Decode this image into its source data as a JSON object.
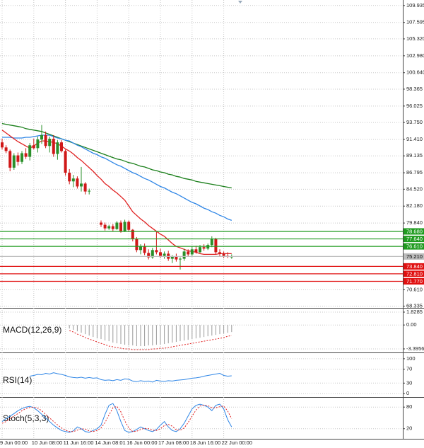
{
  "chart_data": [
    {
      "type": "candlestick",
      "categories": [
        "9 Jun 00:00",
        null,
        null,
        null,
        null,
        null,
        null,
        null,
        "10 Jun 08:00",
        null,
        null,
        null,
        null,
        null,
        null,
        null,
        "11 Jun 16:00",
        null,
        null,
        null,
        null,
        null,
        null,
        null,
        "14 Jun 08:01",
        null,
        null,
        null,
        null,
        null,
        null,
        null,
        "16 Jun 00:00",
        null,
        null,
        null,
        null,
        null,
        null,
        null,
        "17 Jun 08:00",
        null,
        null,
        null,
        null,
        null,
        null,
        null,
        "18 Jun 16:00",
        null,
        null,
        null,
        null,
        null,
        null,
        null,
        "22 Jun 00:00",
        null,
        null
      ],
      "open": [
        91.0,
        90.3,
        89.8,
        87.5,
        89.2,
        88.3,
        89.5,
        89.0,
        90.6,
        90.2,
        91.4,
        92.0,
        90.5,
        91.5,
        89.4,
        91.0,
        89.8,
        86.8,
        85.6,
        86.0,
        84.9,
        85.3,
        84.2,
        null,
        null,
        79.9,
        79.6,
        79.1,
        79.4,
        79.0,
        79.9,
        78.7,
        80.0,
        78.9,
        77.6,
        76.1,
        76.6,
        75.7,
        75.1,
        76.1,
        75.8,
        75.3,
        75.6,
        74.9,
        75.2,
        74.8,
        74.9,
        75.9,
        75.5,
        76.2,
        75.8,
        76.5,
        76.3,
        76.8,
        77.6,
        75.8,
        75.6,
        75.3,
        75.2
      ],
      "high": [
        91.5,
        90.6,
        90.0,
        89.5,
        89.6,
        89.8,
        90.2,
        90.9,
        91.5,
        91.8,
        93.4,
        92.5,
        91.8,
        92.0,
        91.3,
        91.3,
        90.0,
        87.3,
        86.5,
        86.3,
        87.6,
        85.5,
        84.6,
        null,
        null,
        80.2,
        79.9,
        79.6,
        79.7,
        80.1,
        80.2,
        80.3,
        80.2,
        79.0,
        77.9,
        76.9,
        77.0,
        76.2,
        76.4,
        78.6,
        76.3,
        75.9,
        76.0,
        75.4,
        75.6,
        75.1,
        76.3,
        76.2,
        76.6,
        76.7,
        76.8,
        76.9,
        77.0,
        78.0,
        77.8,
        76.2,
        75.9,
        75.8,
        75.5
      ],
      "low": [
        90.0,
        89.5,
        87.0,
        87.2,
        87.8,
        88.0,
        88.7,
        88.5,
        90.0,
        89.6,
        90.8,
        90.2,
        89.6,
        89.0,
        88.6,
        89.6,
        86.4,
        85.2,
        84.8,
        84.6,
        84.2,
        83.8,
        83.8,
        null,
        null,
        79.3,
        78.8,
        78.9,
        78.7,
        78.9,
        78.5,
        78.6,
        78.6,
        77.3,
        75.8,
        75.5,
        75.4,
        74.8,
        74.9,
        75.5,
        75.0,
        74.9,
        74.6,
        74.3,
        74.5,
        73.4,
        74.6,
        75.2,
        75.3,
        75.6,
        75.7,
        76.0,
        76.1,
        76.5,
        75.5,
        75.2,
        75.0,
        75.0,
        74.9
      ],
      "close": [
        90.3,
        89.8,
        87.5,
        89.2,
        88.3,
        89.5,
        89.0,
        90.6,
        90.2,
        91.4,
        92.0,
        90.5,
        91.5,
        89.4,
        91.0,
        89.8,
        86.8,
        85.6,
        86.0,
        84.9,
        85.3,
        84.2,
        84.3,
        null,
        null,
        79.6,
        79.1,
        79.4,
        79.0,
        79.9,
        78.7,
        80.0,
        78.9,
        77.6,
        76.1,
        76.6,
        75.7,
        75.1,
        76.1,
        75.8,
        75.3,
        75.6,
        74.9,
        75.2,
        74.8,
        74.9,
        75.9,
        75.5,
        76.2,
        75.8,
        76.5,
        76.3,
        76.8,
        77.6,
        75.8,
        75.6,
        75.3,
        75.2,
        75.2
      ],
      "up_color": "#2a8f2a",
      "down_color": "#d01818",
      "series": [
        {
          "color": "#1a7f1a",
          "values": [
            93.6,
            93.5,
            93.4,
            93.3,
            93.2,
            93.1,
            92.9,
            92.8,
            92.7,
            92.6,
            92.5,
            92.3,
            92.1,
            91.9,
            91.7,
            91.5,
            91.3,
            91.1,
            90.9,
            90.7,
            90.5,
            90.3,
            90.1,
            89.9,
            89.7,
            89.5,
            89.3,
            89.1,
            88.9,
            88.7,
            88.6,
            88.4,
            88.2,
            88.1,
            87.9,
            87.7,
            87.6,
            87.4,
            87.2,
            87.1,
            86.9,
            86.8,
            86.6,
            86.5,
            86.3,
            86.2,
            86.0,
            85.9,
            85.8,
            85.6,
            85.5,
            85.4,
            85.3,
            85.2,
            85.1,
            85.0,
            84.9,
            84.8,
            84.7
          ]
        },
        {
          "color": "#2f86e6",
          "values": [
            91.7,
            91.7,
            91.7,
            91.6,
            91.6,
            91.6,
            91.7,
            91.7,
            91.8,
            91.9,
            92.0,
            92.0,
            92.0,
            91.8,
            91.6,
            91.5,
            91.3,
            91.2,
            90.9,
            90.6,
            90.4,
            90.1,
            89.8,
            89.5,
            89.3,
            89.0,
            88.8,
            88.5,
            88.2,
            87.9,
            87.7,
            87.4,
            87.1,
            86.8,
            86.6,
            86.3,
            86.0,
            85.8,
            85.5,
            85.2,
            84.9,
            84.7,
            84.4,
            84.1,
            83.9,
            83.6,
            83.3,
            83.0,
            82.7,
            82.5,
            82.2,
            81.9,
            81.7,
            81.4,
            81.2,
            80.9,
            80.7,
            80.4,
            80.2
          ]
        },
        {
          "color": "#e02020",
          "values": [
            92.7,
            92.3,
            91.9,
            91.5,
            91.1,
            90.8,
            90.5,
            90.2,
            90.5,
            90.9,
            91.2,
            91.2,
            91.1,
            91.0,
            90.8,
            90.5,
            90.1,
            89.8,
            89.4,
            88.9,
            88.5,
            88.0,
            87.5,
            87.0,
            86.4,
            85.9,
            85.3,
            84.9,
            84.4,
            84.0,
            83.5,
            83.0,
            82.2,
            81.4,
            80.9,
            80.4,
            80.0,
            79.5,
            79.1,
            78.7,
            78.3,
            78.0,
            77.5,
            77.0,
            76.6,
            76.4,
            76.2,
            76.0,
            75.9,
            75.8,
            75.6,
            75.5,
            75.5,
            75.5,
            75.5,
            75.6,
            75.6,
            75.6,
            75.6
          ]
        }
      ],
      "levels": [
        {
          "value": 78.68,
          "label": "78.680",
          "color": "#1f9b1f",
          "text_color": "#ffffff"
        },
        {
          "value": 77.64,
          "label": "77.640",
          "color": "#1f9b1f",
          "text_color": "#ffffff"
        },
        {
          "value": 76.61,
          "label": "76.610",
          "color": "#1f9b1f",
          "text_color": "#ffffff"
        },
        {
          "value": 75.21,
          "label": "75.210",
          "color": "#bdbdbd",
          "text_color": "#000000"
        },
        {
          "value": 73.84,
          "label": "73.840",
          "color": "#e01010",
          "text_color": "#ffffff"
        },
        {
          "value": 72.81,
          "label": "72.810",
          "color": "#e01010",
          "text_color": "#ffffff"
        },
        {
          "value": 71.77,
          "label": "71.770",
          "color": "#e01010",
          "text_color": "#ffffff"
        }
      ],
      "ylim": [
        68.1,
        110.7
      ],
      "yticks": [
        109.935,
        107.595,
        {
          "value": 105.32,
          "label": "105.320"
        },
        {
          "value": 102.98,
          "label": "102.980"
        },
        {
          "value": 100.64,
          "label": "100.640"
        },
        98.365,
        96.025,
        {
          "value": 93.75,
          "label": "93.750"
        },
        {
          "value": 91.41,
          "label": "91.410"
        },
        89.135,
        86.795,
        {
          "value": 84.52,
          "label": "84.520"
        },
        {
          "value": 82.18,
          "label": "82.180"
        },
        {
          "value": 79.84,
          "label": "79.840"
        },
        {
          "value": 70.61,
          "label": "70.610"
        },
        68.335
      ],
      "grid": true
    },
    {
      "type": "indicator",
      "title": "MACD(12,26,9)",
      "series": [
        {
          "type": "bar",
          "color": "#9a9a9a",
          "values": [
            null,
            null,
            null,
            null,
            null,
            null,
            null,
            null,
            null,
            null,
            null,
            null,
            null,
            null,
            null,
            null,
            null,
            -0.5,
            -0.7,
            -0.9,
            -1.1,
            -1.3,
            -1.5,
            -1.7,
            -1.9,
            -2.0,
            -2.2,
            -2.3,
            -2.5,
            -2.6,
            -2.7,
            -2.8,
            -2.9,
            -2.9,
            -3.0,
            -3.0,
            -3.0,
            -2.9,
            -2.9,
            -2.8,
            -2.8,
            -2.7,
            -2.6,
            -2.5,
            -2.4,
            -2.3,
            -2.2,
            -2.1,
            -2.0,
            -1.9,
            -1.8,
            -1.7,
            -1.6,
            -1.5,
            -1.4,
            -1.3,
            -1.2,
            -1.1,
            -1.0
          ]
        },
        {
          "type": "line",
          "dashed": true,
          "color": "#e02020",
          "values": [
            null,
            null,
            null,
            null,
            null,
            null,
            null,
            null,
            null,
            null,
            null,
            null,
            null,
            null,
            null,
            null,
            null,
            -0.8,
            -1.0,
            -1.3,
            -1.5,
            -1.8,
            -2.0,
            -2.2,
            -2.4,
            -2.6,
            -2.8,
            -3.0,
            -3.1,
            -3.2,
            -3.3,
            -3.4,
            -3.4,
            -3.5,
            -3.5,
            -3.5,
            -3.5,
            -3.5,
            -3.4,
            -3.4,
            -3.3,
            -3.3,
            -3.2,
            -3.1,
            -3.0,
            -2.9,
            -2.8,
            -2.7,
            -2.6,
            -2.5,
            -2.4,
            -2.3,
            -2.2,
            -2.1,
            -2.0,
            -1.9,
            -1.8,
            -1.6,
            -1.5
          ]
        }
      ],
      "ylim": [
        -3.8,
        2.23
      ],
      "yticks": [
        1.8285,
        {
          "value": 0,
          "label": "0.00"
        },
        -3.3956
      ],
      "grid": true
    },
    {
      "type": "indicator",
      "title": "RSI(14)",
      "series": [
        {
          "type": "line",
          "color": "#2f86e6",
          "values": [
            null,
            null,
            null,
            null,
            null,
            null,
            null,
            50,
            52,
            55,
            54,
            58,
            56,
            60,
            57,
            55,
            52,
            48,
            46,
            45,
            47,
            44,
            46,
            44,
            45,
            40,
            38,
            39,
            37,
            40,
            38,
            42,
            41,
            36,
            34,
            37,
            35,
            36,
            33,
            38,
            36,
            35,
            37,
            36,
            38,
            39,
            40,
            42,
            44,
            45,
            47,
            50,
            52,
            54,
            56,
            58,
            52,
            50,
            51
          ]
        }
      ],
      "ylim": [
        -8,
        114
      ],
      "yticks": [
        100,
        70,
        30,
        0
      ],
      "grid": true
    },
    {
      "type": "indicator",
      "title": "Stoch(5,3,3)",
      "series": [
        {
          "type": "line",
          "color": "#2f86e6",
          "values": [
            40,
            48,
            55,
            62,
            70,
            76,
            80,
            82,
            78,
            70,
            60,
            50,
            40,
            30,
            22,
            15,
            12,
            10,
            14,
            25,
            20,
            12,
            10,
            15,
            20,
            30,
            60,
            85,
            90,
            70,
            40,
            15,
            10,
            12,
            18,
            25,
            20,
            15,
            12,
            18,
            30,
            40,
            25,
            15,
            12,
            20,
            35,
            55,
            75,
            85,
            88,
            85,
            80,
            70,
            85,
            88,
            75,
            45,
            25
          ]
        },
        {
          "type": "line",
          "dashed": true,
          "color": "#e02020",
          "values": [
            35,
            40,
            48,
            55,
            62,
            70,
            76,
            79,
            80,
            77,
            70,
            60,
            50,
            40,
            31,
            22,
            16,
            12,
            12,
            16,
            20,
            19,
            14,
            12,
            15,
            22,
            37,
            58,
            78,
            82,
            67,
            42,
            22,
            12,
            13,
            18,
            21,
            20,
            16,
            15,
            20,
            29,
            32,
            27,
            17,
            16,
            22,
            37,
            55,
            72,
            83,
            86,
            84,
            78,
            78,
            81,
            83,
            69,
            48
          ]
        }
      ],
      "ylim": [
        -8,
        104
      ],
      "yticks": [
        80,
        20
      ],
      "grid": true
    }
  ]
}
